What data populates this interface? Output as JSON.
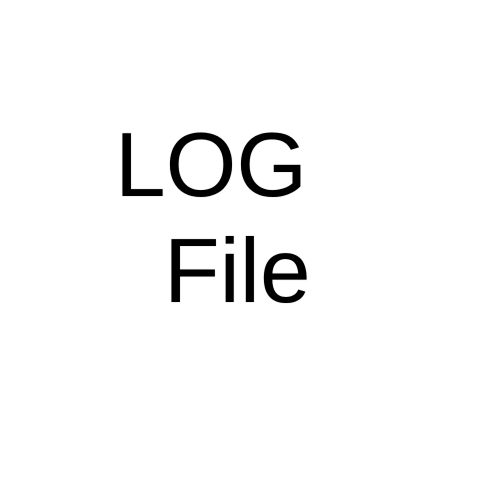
{
  "icon_label": {
    "line_1": "LOG",
    "line_2": "File"
  },
  "colors": {
    "background": "#ffffff",
    "text": "#000000"
  }
}
